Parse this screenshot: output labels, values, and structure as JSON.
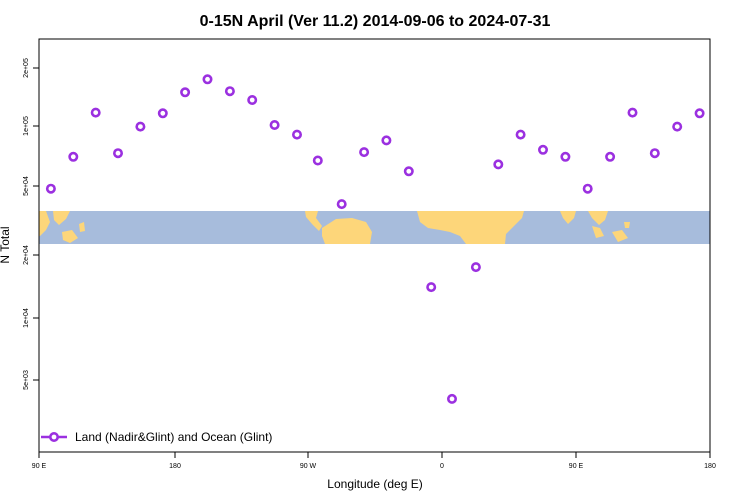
{
  "chart_data": {
    "type": "scatter",
    "title": "0-15N April (Ver 11.2)   2014-09-06 to 2024-07-31",
    "xlabel": "Longitude (deg E)",
    "ylabel": "N Total",
    "x_tick_labels": [
      "90 E",
      "180",
      "90 W",
      "0",
      "90 E",
      "180"
    ],
    "y_tick_labels": [
      "5e+03",
      "1e+04",
      "2e+04",
      "5e+04",
      "1e+05",
      "2e+05"
    ],
    "y_scale": "log",
    "grid": false,
    "legend_position": "bottom-left",
    "background_band": "world map strip (land and ocean) across the plot at 0-15N",
    "series": [
      {
        "name": "Land (Nadir&Glint) and Ocean (Glint)",
        "color": "#9b30e0",
        "marker": "open-circle-with-line",
        "points": [
          {
            "lon": 98,
            "n": 48000
          },
          {
            "lon": 113,
            "n": 70000
          },
          {
            "lon": 128,
            "n": 118000
          },
          {
            "lon": 143,
            "n": 73000
          },
          {
            "lon": 158,
            "n": 100000
          },
          {
            "lon": 173,
            "n": 117000
          },
          {
            "lon": 188,
            "n": 150000
          },
          {
            "lon": 203,
            "n": 175000
          },
          {
            "lon": 218,
            "n": 152000
          },
          {
            "lon": 233,
            "n": 137000
          },
          {
            "lon": 248,
            "n": 102000
          },
          {
            "lon": 263,
            "n": 91000
          },
          {
            "lon": 277,
            "n": 67000
          },
          {
            "lon": 293,
            "n": 40000
          },
          {
            "lon": 308,
            "n": 74000
          },
          {
            "lon": 323,
            "n": 85000
          },
          {
            "lon": 338,
            "n": 59000
          },
          {
            "lon": -7,
            "n": 15000
          },
          {
            "lon": 7,
            "n": 4000
          },
          {
            "lon": 23,
            "n": 19000
          },
          {
            "lon": 38,
            "n": 64000
          },
          {
            "lon": 53,
            "n": 91000
          },
          {
            "lon": 68,
            "n": 76000
          },
          {
            "lon": 83,
            "n": 70000
          },
          {
            "lon": 98,
            "n": 48000
          },
          {
            "lon": 113,
            "n": 70000
          },
          {
            "lon": 128,
            "n": 118000
          },
          {
            "lon": 143,
            "n": 73000
          },
          {
            "lon": 158,
            "n": 100000
          },
          {
            "lon": 173,
            "n": 117000
          }
        ]
      }
    ]
  }
}
